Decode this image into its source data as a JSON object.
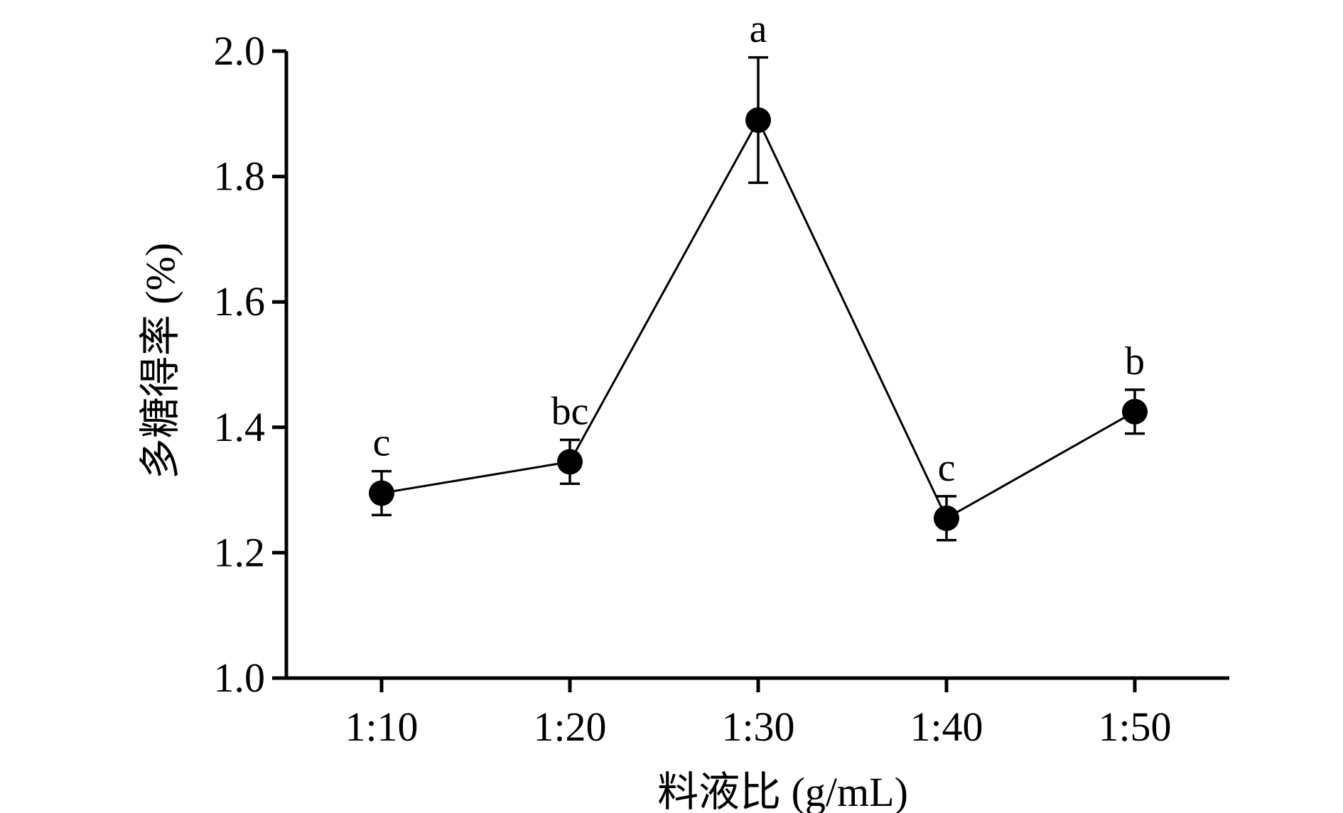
{
  "chart_data": {
    "type": "line",
    "title": "",
    "xlabel": "料液比 (g/mL)",
    "ylabel": "多糖得率 (%)",
    "categories": [
      "1:10",
      "1:20",
      "1:30",
      "1:40",
      "1:50"
    ],
    "ylim": [
      1.0,
      2.0
    ],
    "yticks": [
      "1.0",
      "1.2",
      "1.4",
      "1.6",
      "1.8",
      "2.0"
    ],
    "grid": false,
    "series": [
      {
        "values": [
          1.295,
          1.345,
          1.89,
          1.255,
          1.425
        ],
        "errors": [
          0.035,
          0.035,
          0.1,
          0.035,
          0.035
        ],
        "labels": [
          "c",
          "bc",
          "a",
          "c",
          "b"
        ],
        "color": "#000000",
        "marker": "circle"
      }
    ]
  }
}
